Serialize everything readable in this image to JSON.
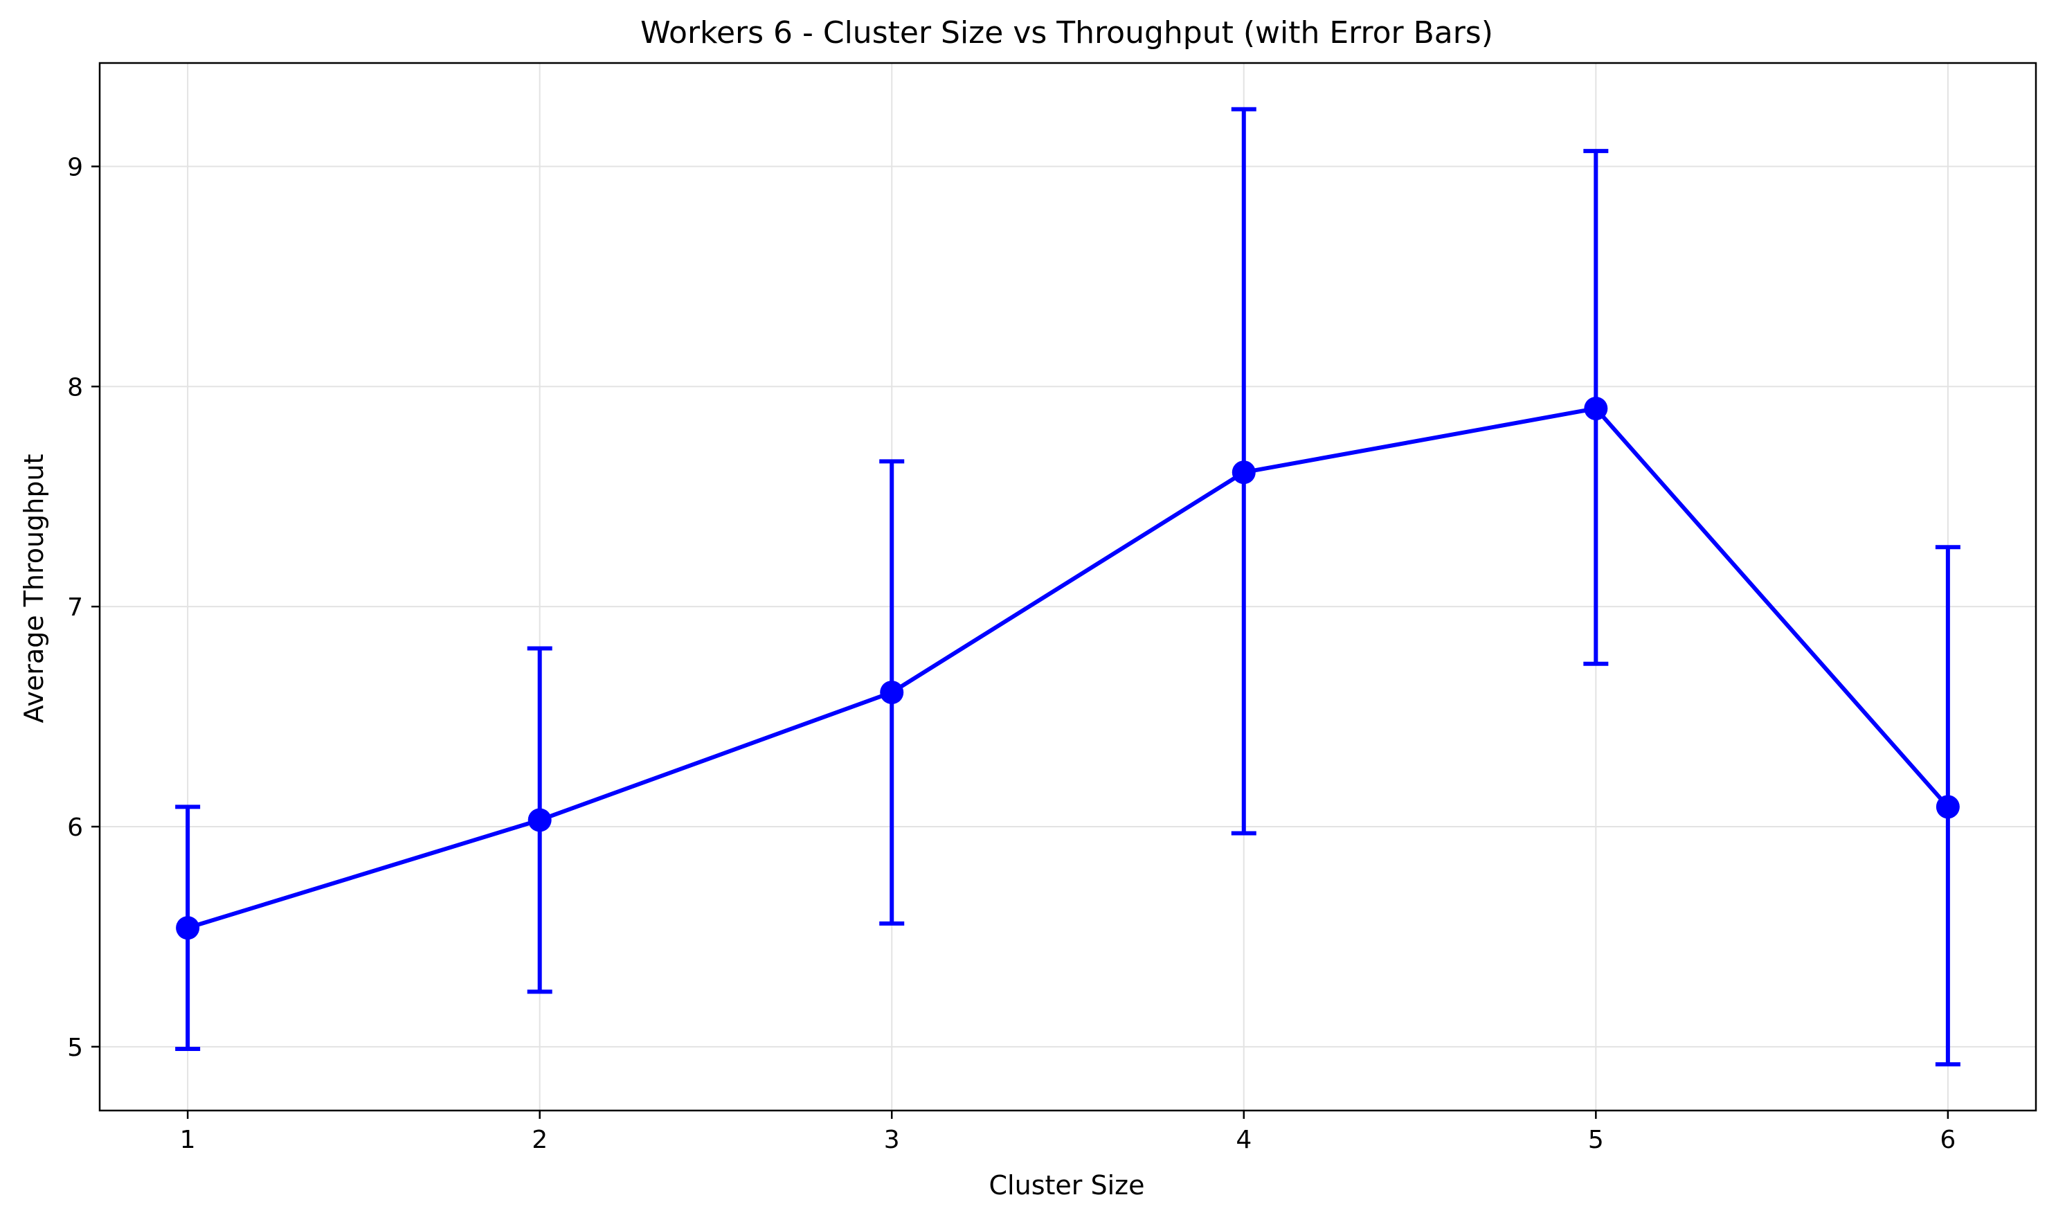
{
  "chart_data": {
    "type": "line",
    "title": "Workers 6 - Cluster Size vs Throughput (with Error Bars)",
    "xlabel": "Cluster Size",
    "ylabel": "Average Throughput",
    "x": [
      1,
      2,
      3,
      4,
      5,
      6
    ],
    "series": [
      {
        "values": [
          5.54,
          6.03,
          6.61,
          7.61,
          7.9,
          6.09
        ],
        "error_low": [
          4.99,
          5.25,
          5.56,
          5.97,
          6.74,
          4.92
        ],
        "error_high": [
          6.09,
          6.81,
          7.66,
          9.26,
          9.07,
          7.27
        ],
        "color": "#0000ff",
        "marker": "circle"
      }
    ],
    "xticks": [
      "1",
      "2",
      "3",
      "4",
      "5",
      "6"
    ],
    "yticks": [
      "5",
      "6",
      "7",
      "8",
      "9"
    ],
    "xlim": [
      0.75,
      6.25
    ],
    "ylim": [
      4.71,
      9.47
    ],
    "grid": true
  }
}
